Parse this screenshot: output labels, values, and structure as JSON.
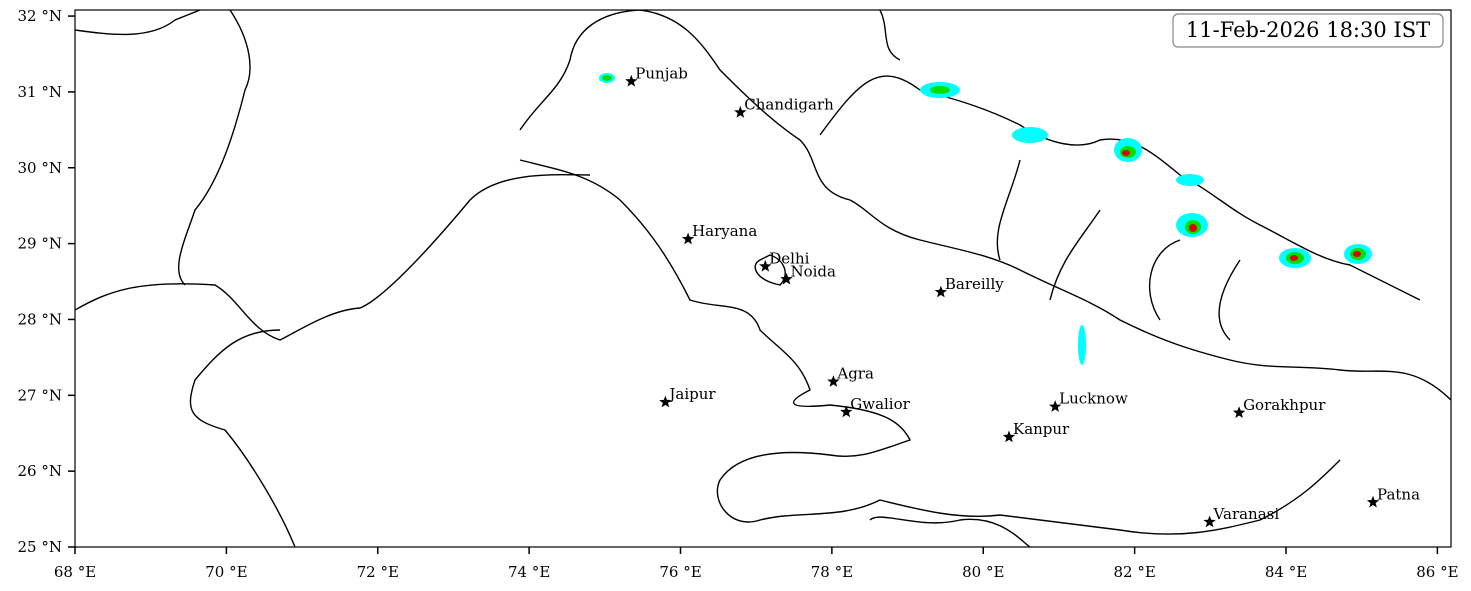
{
  "title": "11-Feb-2026 18:30 IST",
  "xlim": [
    68,
    86.18
  ],
  "ylim": [
    25,
    32.08
  ],
  "xticks": [
    {
      "value": 68,
      "label": "68 °E"
    },
    {
      "value": 70,
      "label": "70 °E"
    },
    {
      "value": 72,
      "label": "72 °E"
    },
    {
      "value": 74,
      "label": "74 °E"
    },
    {
      "value": 76,
      "label": "76 °E"
    },
    {
      "value": 78,
      "label": "78 °E"
    },
    {
      "value": 80,
      "label": "80 °E"
    },
    {
      "value": 82,
      "label": "82 °E"
    },
    {
      "value": 84,
      "label": "84 °E"
    },
    {
      "value": 86,
      "label": "86 °E"
    }
  ],
  "yticks": [
    {
      "value": 25,
      "label": "25 °N"
    },
    {
      "value": 26,
      "label": "26 °N"
    },
    {
      "value": 27,
      "label": "27 °N"
    },
    {
      "value": 28,
      "label": "28 °N"
    },
    {
      "value": 29,
      "label": "29 °N"
    },
    {
      "value": 30,
      "label": "30 °N"
    },
    {
      "value": 31,
      "label": "31 °N"
    },
    {
      "value": 32,
      "label": "32 °N"
    }
  ],
  "cities": [
    {
      "name": "Punjab",
      "lon": 75.35,
      "lat": 31.14
    },
    {
      "name": "Chandigarh",
      "lon": 76.79,
      "lat": 30.73
    },
    {
      "name": "Haryana",
      "lon": 76.1,
      "lat": 29.06
    },
    {
      "name": "Delhi",
      "lon": 77.12,
      "lat": 28.7
    },
    {
      "name": "Noida",
      "lon": 77.4,
      "lat": 28.53
    },
    {
      "name": "Bareilly",
      "lon": 79.44,
      "lat": 28.36
    },
    {
      "name": "Agra",
      "lon": 78.02,
      "lat": 27.18
    },
    {
      "name": "Jaipur",
      "lon": 75.8,
      "lat": 26.91
    },
    {
      "name": "Gwalior",
      "lon": 78.19,
      "lat": 26.78
    },
    {
      "name": "Lucknow",
      "lon": 80.95,
      "lat": 26.85
    },
    {
      "name": "Gorakhpur",
      "lon": 83.38,
      "lat": 26.77
    },
    {
      "name": "Kanpur",
      "lon": 80.34,
      "lat": 26.45
    },
    {
      "name": "Varanasi",
      "lon": 82.99,
      "lat": 25.33
    },
    {
      "name": "Patna",
      "lon": 85.15,
      "lat": 25.59
    }
  ]
}
